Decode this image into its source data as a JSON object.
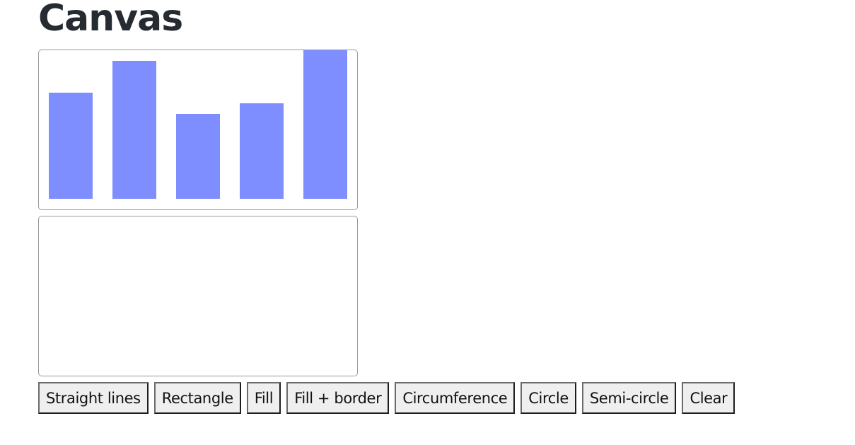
{
  "page": {
    "title": "Canvas"
  },
  "colors": {
    "bar_fill": "#7f8eff",
    "canvas_border": "#9a9a9a",
    "button_bg": "#efefef"
  },
  "chart_data": {
    "type": "bar",
    "values": [
      150,
      195,
      120,
      135,
      210
    ],
    "ylim": [
      0,
      210
    ],
    "grid": false
  },
  "buttons": [
    {
      "label": "Straight lines"
    },
    {
      "label": "Rectangle"
    },
    {
      "label": "Fill"
    },
    {
      "label": "Fill + border"
    },
    {
      "label": "Circumference"
    },
    {
      "label": "Circle"
    },
    {
      "label": "Semi-circle"
    },
    {
      "label": "Clear"
    }
  ]
}
